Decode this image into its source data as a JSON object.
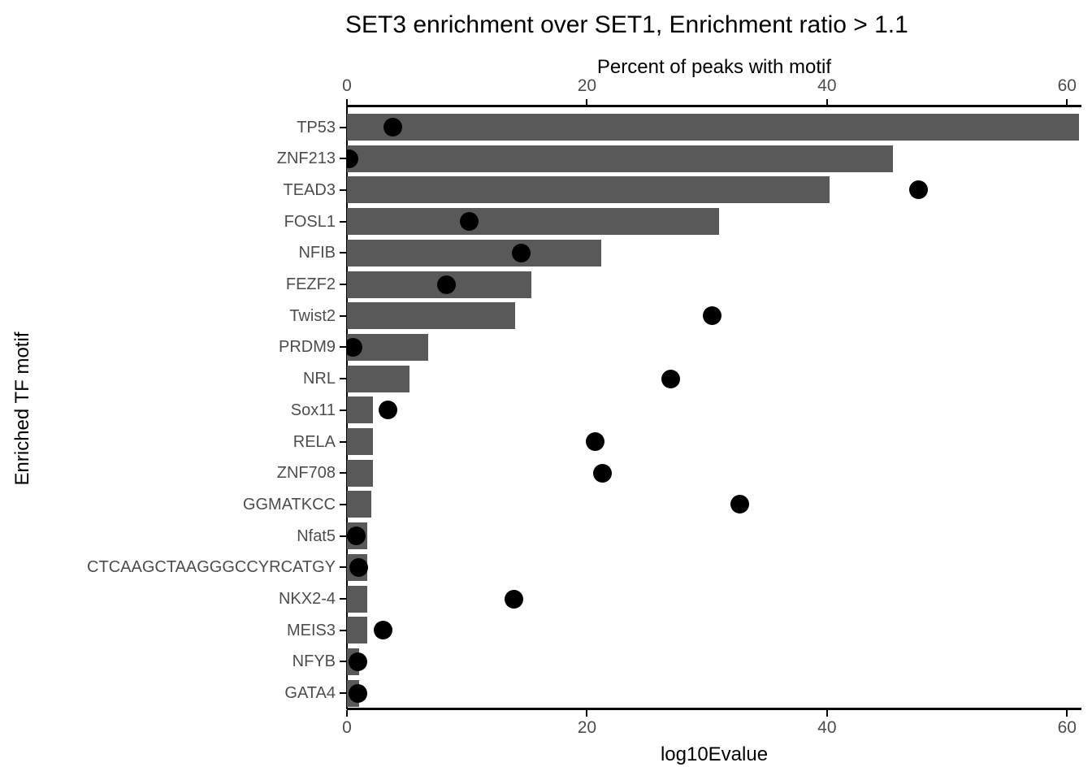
{
  "title": "SET3 enrichment over SET1, Enrichment ratio > 1.1",
  "chart_data": {
    "type": "bar",
    "orientation": "horizontal",
    "title": "SET3 enrichment over SET1, Enrichment ratio > 1.1",
    "ylabel": "Enriched TF motif",
    "grid": false,
    "legend": "none",
    "top_axis": {
      "label": "Percent of peaks with motif",
      "ticks": [
        0,
        20,
        40,
        60
      ],
      "range": [
        0,
        61.2
      ]
    },
    "bottom_axis": {
      "label": "log10Evalue",
      "ticks": [
        0,
        20,
        40,
        60
      ],
      "range": [
        0,
        61.2
      ]
    },
    "categories": [
      "TP53",
      "ZNF213",
      "TEAD3",
      "FOSL1",
      "NFIB",
      "FEZF2",
      "Twist2",
      "PRDM9",
      "NRL",
      "Sox11",
      "RELA",
      "ZNF708",
      "GGMATKCC",
      "Nfat5",
      "CTCAAGCTAAGGGCCYRCATGY",
      "NKX2-4",
      "MEIS3",
      "NFYB",
      "GATA4"
    ],
    "series": [
      {
        "name": "Percent of peaks with motif",
        "type": "bar",
        "values": [
          61.0,
          45.5,
          40.2,
          31.0,
          21.2,
          15.4,
          14.0,
          6.8,
          5.2,
          2.2,
          2.2,
          2.2,
          2.0,
          1.7,
          1.7,
          1.7,
          1.7,
          1.0,
          1.0
        ]
      },
      {
        "name": "log10Evalue",
        "type": "scatter",
        "values": [
          3.8,
          0.2,
          47.6,
          10.2,
          14.5,
          8.3,
          30.4,
          0.5,
          27.0,
          3.4,
          20.7,
          21.3,
          32.7,
          0.8,
          1.0,
          13.9,
          3.0,
          0.9,
          0.9
        ]
      }
    ],
    "colors": {
      "bar": "#595959",
      "point": "#000000",
      "axis_line": "#000000",
      "axis_text": "#4d4d4d",
      "title_text": "#000000"
    }
  }
}
